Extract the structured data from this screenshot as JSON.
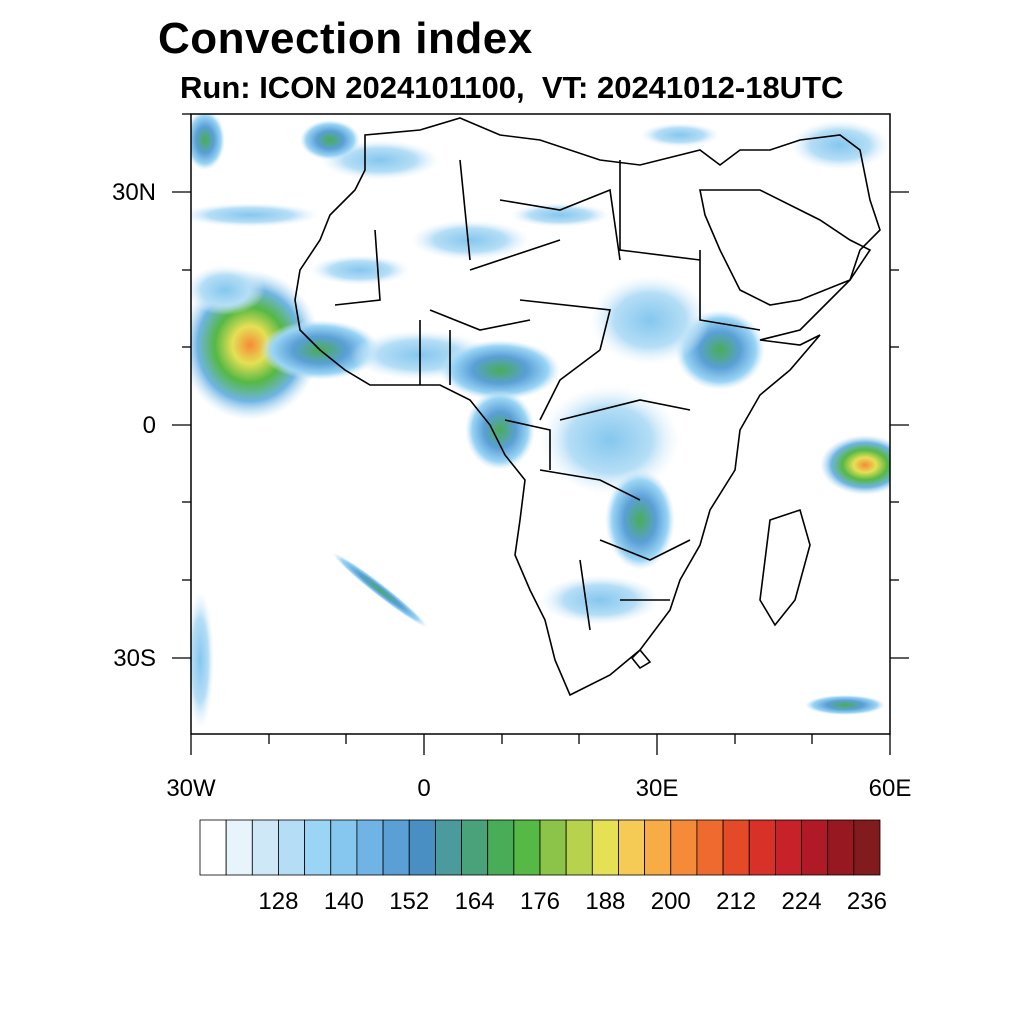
{
  "title": "Convection index",
  "subtitle": "Run: ICON 2024101100,  VT: 20241012-18UTC",
  "map": {
    "extent": {
      "lon": [
        -30,
        60
      ],
      "lat": [
        -40,
        40
      ]
    },
    "lat_labels": [
      "30N",
      "0",
      "30S"
    ],
    "lon_labels": [
      "30W",
      "0",
      "30E",
      "60E"
    ],
    "colors": {
      "land_outline": "#000000",
      "ocean": "#ffffff"
    }
  },
  "colorbar": {
    "colors": [
      "#ffffff",
      "#e8f4fc",
      "#cfe8f8",
      "#b5def6",
      "#9ad5f5",
      "#85c7ee",
      "#6fb4e4",
      "#5a9fd6",
      "#4a8fc4",
      "#4b9a9e",
      "#4aa27a",
      "#49ad57",
      "#56b845",
      "#8cc44a",
      "#b7d34e",
      "#e5e054",
      "#f6cb55",
      "#f7ac45",
      "#f58b38",
      "#ef6a2e",
      "#e54a28",
      "#d83128",
      "#c72229",
      "#b01a26",
      "#981822",
      "#821b1e"
    ],
    "tick_labels": [
      "128",
      "140",
      "152",
      "164",
      "176",
      "188",
      "200",
      "212",
      "224",
      "236"
    ]
  }
}
